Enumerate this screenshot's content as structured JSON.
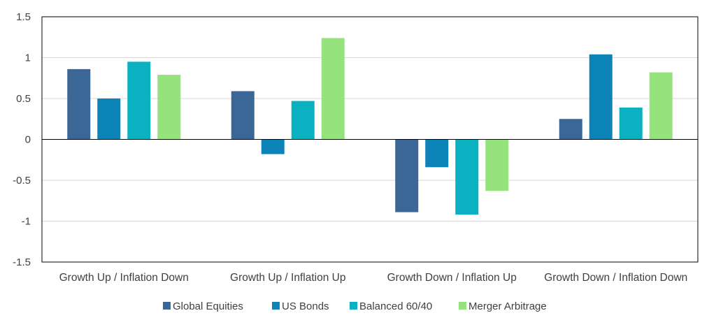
{
  "chart_data": {
    "type": "bar",
    "categories": [
      "Growth Up / Inflation Down",
      "Growth Up / Inflation Up",
      "Growth Down / Inflation Up",
      "Growth Down / Inflation Down"
    ],
    "series": [
      {
        "name": "Global Equities",
        "color": "#3a6796",
        "values": [
          0.86,
          0.59,
          -0.89,
          0.25
        ]
      },
      {
        "name": "US Bonds",
        "color": "#0d84b8",
        "values": [
          0.5,
          -0.18,
          -0.34,
          1.04
        ]
      },
      {
        "name": "Balanced 60/40",
        "color": "#0bb1c0",
        "values": [
          0.95,
          0.47,
          -0.92,
          0.39
        ]
      },
      {
        "name": "Merger Arbitrage",
        "color": "#96e37e",
        "values": [
          0.79,
          1.24,
          -0.63,
          0.82
        ]
      }
    ],
    "yticks": [
      {
        "value": 1.5,
        "label": "1.5"
      },
      {
        "value": 1.0,
        "label": "1"
      },
      {
        "value": 0.5,
        "label": "0.5"
      },
      {
        "value": 0.0,
        "label": "0"
      },
      {
        "value": -0.5,
        "label": "-0.5"
      },
      {
        "value": -1.0,
        "label": "-1"
      },
      {
        "value": -1.5,
        "label": "-1.5"
      }
    ],
    "ylim": [
      -1.5,
      1.5
    ],
    "title": "",
    "xlabel": "",
    "ylabel": "",
    "grid": true,
    "legend_position": "bottom"
  }
}
